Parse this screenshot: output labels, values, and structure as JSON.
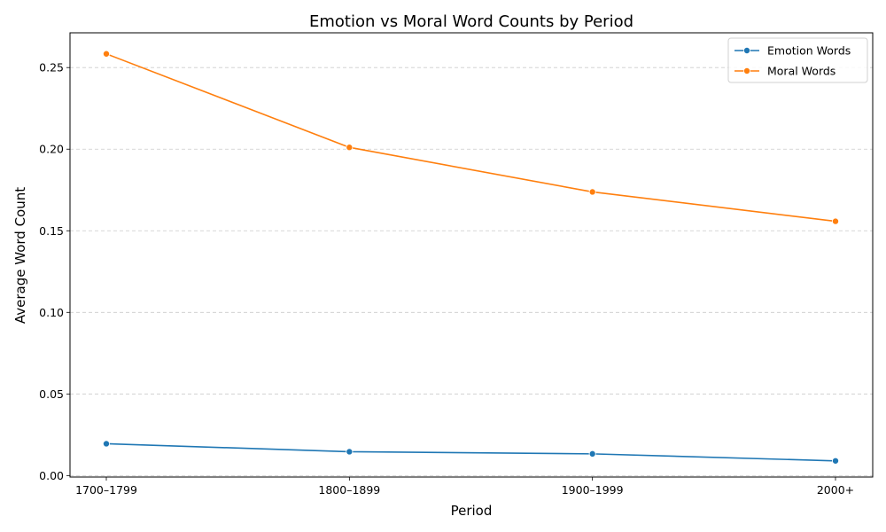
{
  "chart_data": {
    "type": "line",
    "title": "Emotion vs Moral Word Counts by Period",
    "xlabel": "Period",
    "ylabel": "Average Word Count",
    "categories": [
      "1700–1799",
      "1800–1899",
      "1900–1999",
      "2000+"
    ],
    "ylim": [
      -0.0009,
      0.2713
    ],
    "yticks": [
      "0.00",
      "0.05",
      "0.10",
      "0.15",
      "0.20",
      "0.25"
    ],
    "grid": "horizontal dashed",
    "legend_position": "top-right",
    "series": [
      {
        "name": "Emotion Words",
        "color": "#1f77b4",
        "values": [
          0.0195,
          0.0146,
          0.0133,
          0.009
        ]
      },
      {
        "name": "Moral Words",
        "color": "#ff7f0e",
        "values": [
          0.2584,
          0.2011,
          0.1738,
          0.1558
        ]
      }
    ]
  }
}
